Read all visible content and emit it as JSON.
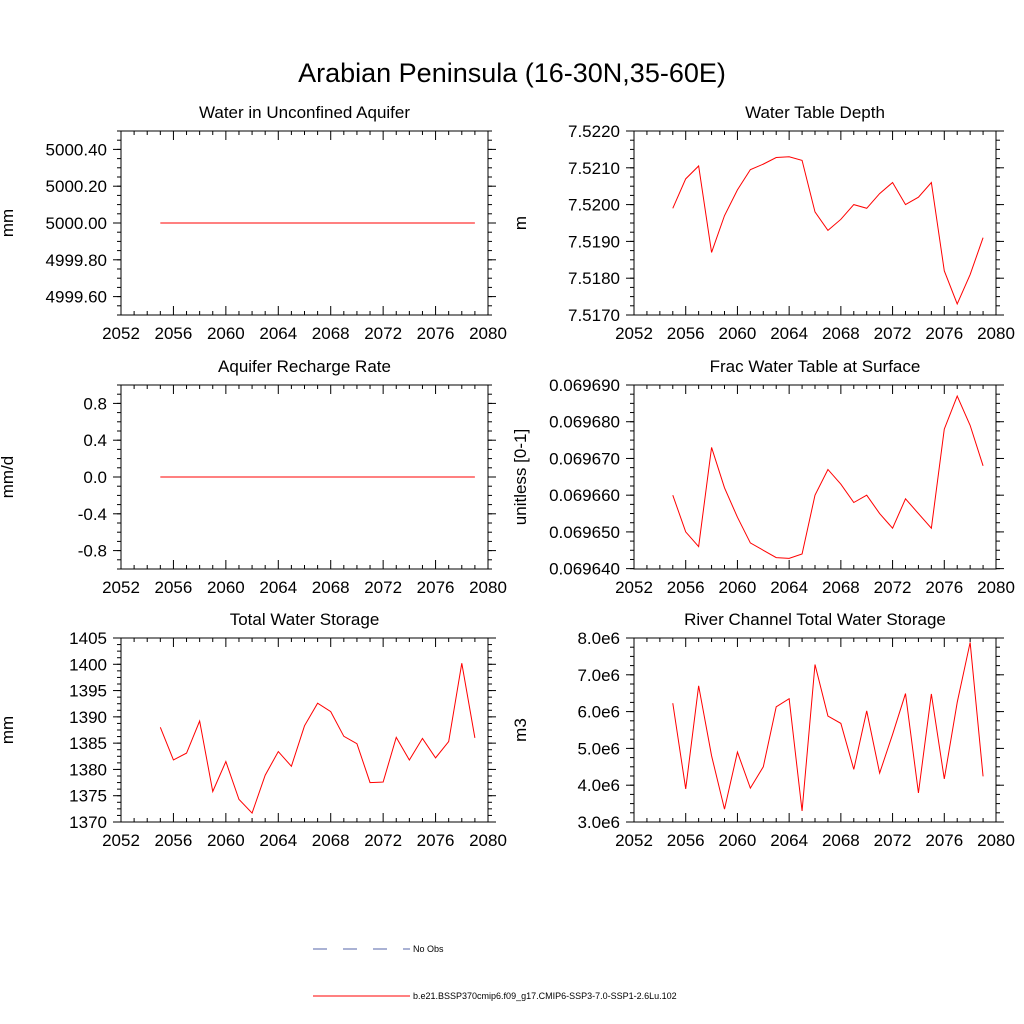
{
  "figure": {
    "title": "Arabian Peninsula (16-30N,35-60E)",
    "legend": [
      {
        "label": "No Obs",
        "style": "dashed",
        "color": "#5566aa"
      },
      {
        "label": "b.e21.BSSP370cmip6.f09_g17.CMIP6-SSP3-7.0-SSP1-2.6Lu.102",
        "style": "solid",
        "color": "#ff0000"
      }
    ]
  },
  "chart_data": [
    {
      "type": "line",
      "title": "Water in Unconfined Aquifer",
      "ylabel": "mm",
      "xlim": [
        2052,
        2080
      ],
      "ylim": [
        4999.5,
        5000.5
      ],
      "xticks": [
        "2052",
        "2056",
        "2060",
        "2064",
        "2068",
        "2072",
        "2076",
        "2080"
      ],
      "yticks": [
        "4999.60",
        "4999.80",
        "5000.00",
        "5000.20",
        "5000.40"
      ],
      "ytick_values": [
        4999.6,
        4999.8,
        5000.0,
        5000.2,
        5000.4
      ],
      "x": [
        2055,
        2056,
        2057,
        2058,
        2059,
        2060,
        2061,
        2062,
        2063,
        2064,
        2065,
        2066,
        2067,
        2068,
        2069,
        2070,
        2071,
        2072,
        2073,
        2074,
        2075,
        2076,
        2077,
        2078,
        2079
      ],
      "series": [
        {
          "color": "#ff0000",
          "values": [
            5000.0,
            5000.0,
            5000.0,
            5000.0,
            5000.0,
            5000.0,
            5000.0,
            5000.0,
            5000.0,
            5000.0,
            5000.0,
            5000.0,
            5000.0,
            5000.0,
            5000.0,
            5000.0,
            5000.0,
            5000.0,
            5000.0,
            5000.0,
            5000.0,
            5000.0,
            5000.0,
            5000.0,
            5000.0
          ]
        }
      ]
    },
    {
      "type": "line",
      "title": "Water Table Depth",
      "ylabel": "m",
      "xlim": [
        2052,
        2080
      ],
      "ylim": [
        7.517,
        7.522
      ],
      "xticks": [
        "2052",
        "2056",
        "2060",
        "2064",
        "2068",
        "2072",
        "2076",
        "2080"
      ],
      "yticks": [
        "7.5170",
        "7.5180",
        "7.5190",
        "7.5200",
        "7.5210",
        "7.5220"
      ],
      "ytick_values": [
        7.517,
        7.518,
        7.519,
        7.52,
        7.521,
        7.522
      ],
      "x": [
        2055,
        2056,
        2057,
        2058,
        2059,
        2060,
        2061,
        2062,
        2063,
        2064,
        2065,
        2066,
        2067,
        2068,
        2069,
        2070,
        2071,
        2072,
        2073,
        2074,
        2075,
        2076,
        2077,
        2078,
        2079
      ],
      "series": [
        {
          "color": "#ff0000",
          "values": [
            7.5199,
            7.5207,
            7.52105,
            7.5187,
            7.5197,
            7.5204,
            7.52095,
            7.5211,
            7.52128,
            7.5213,
            7.5212,
            7.5198,
            7.5193,
            7.5196,
            7.52,
            7.5199,
            7.5203,
            7.5206,
            7.52,
            7.5202,
            7.5206,
            7.5182,
            7.5173,
            7.5181,
            7.5191
          ]
        }
      ]
    },
    {
      "type": "line",
      "title": "Aquifer Recharge Rate",
      "ylabel": "mm/d",
      "xlim": [
        2052,
        2080
      ],
      "ylim": [
        -1.0,
        1.0
      ],
      "xticks": [
        "2052",
        "2056",
        "2060",
        "2064",
        "2068",
        "2072",
        "2076",
        "2080"
      ],
      "yticks": [
        "-0.8",
        "-0.4",
        "0.0",
        "0.4",
        "0.8"
      ],
      "ytick_values": [
        -0.8,
        -0.4,
        0.0,
        0.4,
        0.8
      ],
      "x": [
        2055,
        2056,
        2057,
        2058,
        2059,
        2060,
        2061,
        2062,
        2063,
        2064,
        2065,
        2066,
        2067,
        2068,
        2069,
        2070,
        2071,
        2072,
        2073,
        2074,
        2075,
        2076,
        2077,
        2078,
        2079
      ],
      "series": [
        {
          "color": "#ff0000",
          "values": [
            0.0,
            0.0,
            0.0,
            0.0,
            0.0,
            0.0,
            0.0,
            0.0,
            0.0,
            0.0,
            0.0,
            0.0,
            0.0,
            0.0,
            0.0,
            0.0,
            0.0,
            0.0,
            0.0,
            0.0,
            0.0,
            0.0,
            0.0,
            0.0,
            0.0
          ]
        }
      ]
    },
    {
      "type": "line",
      "title": "Frac Water Table at Surface",
      "ylabel": "unitless [0-1]",
      "xlim": [
        2052,
        2080
      ],
      "ylim": [
        0.0696399,
        0.06969
      ],
      "xticks": [
        "2052",
        "2056",
        "2060",
        "2064",
        "2068",
        "2072",
        "2076",
        "2080"
      ],
      "yticks": [
        "0.069640",
        "0.069650",
        "0.069660",
        "0.069670",
        "0.069680",
        "0.069690"
      ],
      "ytick_values": [
        0.06964,
        0.06965,
        0.06966,
        0.06967,
        0.06968,
        0.06969
      ],
      "x": [
        2055,
        2056,
        2057,
        2058,
        2059,
        2060,
        2061,
        2062,
        2063,
        2064,
        2065,
        2066,
        2067,
        2068,
        2069,
        2070,
        2071,
        2072,
        2073,
        2074,
        2075,
        2076,
        2077,
        2078,
        2079
      ],
      "series": [
        {
          "color": "#ff0000",
          "values": [
            0.06966,
            0.06965,
            0.069646,
            0.069673,
            0.069662,
            0.069654,
            0.069647,
            0.069645,
            0.069643,
            0.0696428,
            0.069644,
            0.06966,
            0.069667,
            0.069663,
            0.069658,
            0.06966,
            0.069655,
            0.069651,
            0.069659,
            0.069655,
            0.069651,
            0.069678,
            0.069687,
            0.069679,
            0.069668
          ]
        }
      ]
    },
    {
      "type": "line",
      "title": "Total Water Storage",
      "ylabel": "mm",
      "xlim": [
        2052,
        2080
      ],
      "ylim": [
        1370,
        1405
      ],
      "xticks": [
        "2052",
        "2056",
        "2060",
        "2064",
        "2068",
        "2072",
        "2076",
        "2080"
      ],
      "yticks": [
        "1370",
        "1375",
        "1380",
        "1385",
        "1390",
        "1395",
        "1400",
        "1405"
      ],
      "ytick_values": [
        1370,
        1375,
        1380,
        1385,
        1390,
        1395,
        1400,
        1405
      ],
      "x": [
        2055,
        2056,
        2057,
        2058,
        2059,
        2060,
        2061,
        2062,
        2063,
        2064,
        2065,
        2066,
        2067,
        2068,
        2069,
        2070,
        2071,
        2072,
        2073,
        2074,
        2075,
        2076,
        2077,
        2078,
        2079
      ],
      "series": [
        {
          "color": "#ff0000",
          "values": [
            1388.0,
            1381.8,
            1383.1,
            1389.2,
            1375.8,
            1381.5,
            1374.3,
            1371.7,
            1378.9,
            1383.4,
            1380.6,
            1388.3,
            1392.6,
            1391.0,
            1386.3,
            1384.9,
            1377.5,
            1377.6,
            1386.1,
            1381.8,
            1385.9,
            1382.2,
            1385.3,
            1400.2,
            1386.0
          ]
        }
      ]
    },
    {
      "type": "line",
      "title": "River Channel Total Water Storage",
      "ylabel": "m3",
      "xlim": [
        2052,
        2080
      ],
      "ylim": [
        3000000,
        8000000
      ],
      "xticks": [
        "2052",
        "2056",
        "2060",
        "2064",
        "2068",
        "2072",
        "2076",
        "2080"
      ],
      "yticks": [
        "3.0e6",
        "4.0e6",
        "5.0e6",
        "6.0e6",
        "7.0e6",
        "8.0e6"
      ],
      "ytick_values": [
        3000000,
        4000000,
        5000000,
        6000000,
        7000000,
        8000000
      ],
      "x": [
        2055,
        2056,
        2057,
        2058,
        2059,
        2060,
        2061,
        2062,
        2063,
        2064,
        2065,
        2066,
        2067,
        2068,
        2069,
        2070,
        2071,
        2072,
        2073,
        2074,
        2075,
        2076,
        2077,
        2078,
        2079
      ],
      "series": [
        {
          "color": "#ff0000",
          "values": [
            6230000,
            3900000,
            6700000,
            4800000,
            3350000,
            4900000,
            3920000,
            4500000,
            6130000,
            6350000,
            3300000,
            7280000,
            5880000,
            5680000,
            4430000,
            6020000,
            4330000,
            5380000,
            6490000,
            3790000,
            6480000,
            4170000,
            6250000,
            7880000,
            4240000
          ]
        }
      ]
    }
  ]
}
